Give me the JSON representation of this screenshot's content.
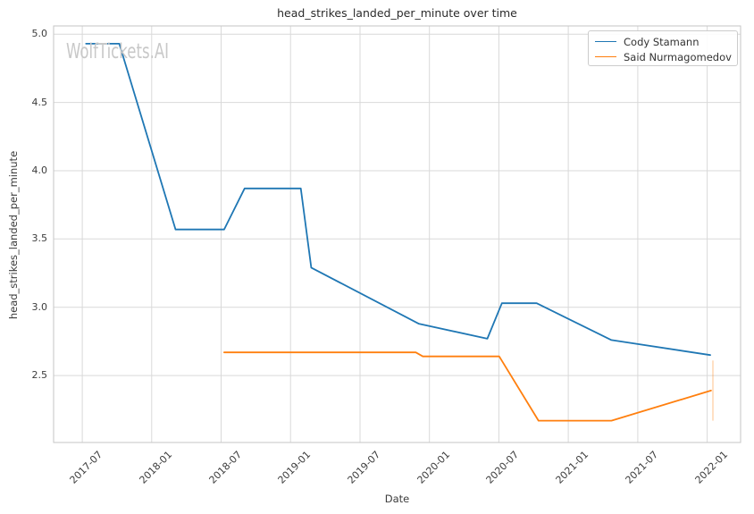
{
  "page": {
    "watermark": "WolfTickets.AI"
  },
  "chart_data": {
    "type": "line",
    "title": "head_strikes_landed_per_minute over time",
    "xlabel": "Date",
    "ylabel": "head_strikes_landed_per_minute",
    "x_tick_labels": [
      "2017-07",
      "2018-01",
      "2018-07",
      "2019-01",
      "2019-07",
      "2020-01",
      "2020-07",
      "2021-01",
      "2021-07",
      "2022-01"
    ],
    "y_tick_labels": [
      "2.5",
      "3.0",
      "3.5",
      "4.0",
      "4.5",
      "5.0"
    ],
    "y_ticks": [
      2.5,
      3.0,
      3.5,
      4.0,
      4.5,
      5.0
    ],
    "ylim": [
      2.01,
      5.06
    ],
    "xlim_dates": [
      "2017-04-17",
      "2022-03-28"
    ],
    "grid": true,
    "legend_position": "upper right",
    "colors": {
      "cody_stamann": "#1f77b4",
      "said_nurmagomedov": "#ff7f0e",
      "grid": "#d9d9d9",
      "spine": "#c6c6c6",
      "text": "#3c3c3c",
      "watermark": "#c8c8c8"
    },
    "series": [
      {
        "name": "Cody Stamann",
        "color": "#1f77b4",
        "points": [
          [
            "2017-07-11",
            4.93
          ],
          [
            "2017-10-07",
            4.93
          ],
          [
            "2018-03-03",
            3.57
          ],
          [
            "2018-07-09",
            3.57
          ],
          [
            "2018-09-02",
            3.87
          ],
          [
            "2019-01-28",
            3.87
          ],
          [
            "2019-02-25",
            3.29
          ],
          [
            "2019-12-03",
            2.88
          ],
          [
            "2020-06-01",
            2.77
          ],
          [
            "2020-07-09",
            3.03
          ],
          [
            "2020-10-09",
            3.03
          ],
          [
            "2021-04-23",
            2.76
          ],
          [
            "2022-01-09",
            2.65
          ]
        ]
      },
      {
        "name": "Said Nurmagomedov",
        "color": "#ff7f0e",
        "points": [
          [
            "2018-07-09",
            2.67
          ],
          [
            "2019-11-26",
            2.67
          ],
          [
            "2019-12-14",
            2.64
          ],
          [
            "2020-07-02",
            2.64
          ],
          [
            "2020-10-14",
            2.17
          ],
          [
            "2021-04-23",
            2.17
          ],
          [
            "2022-01-11",
            2.39
          ]
        ],
        "error_bar": {
          "date": "2022-01-16",
          "low": 2.17,
          "high": 2.61
        }
      }
    ]
  }
}
